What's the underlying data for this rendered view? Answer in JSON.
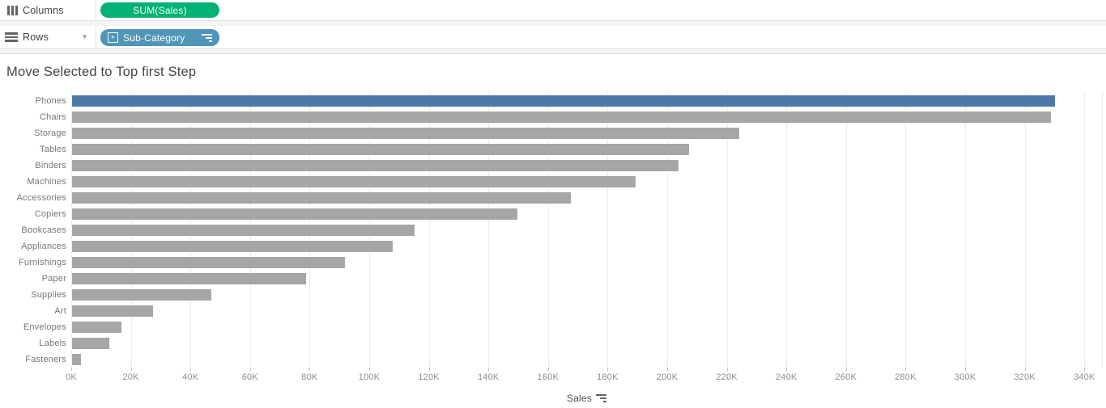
{
  "shelves": {
    "columns": {
      "label": "Columns",
      "pill": {
        "label": "SUM(Sales)",
        "color": "#00b273"
      }
    },
    "rows": {
      "label": "Rows",
      "caret_glyph": "▾",
      "pill": {
        "label": "Sub-Category",
        "color": "#4f96b8",
        "expand_glyph": "+",
        "sorted": "descending"
      }
    }
  },
  "title": "Move Selected to Top first Step",
  "chart_data": {
    "type": "bar",
    "orientation": "horizontal",
    "title": "Move Selected to Top first Step",
    "xlabel": "Sales",
    "ylabel": "Sub-Category",
    "sort": "descending",
    "grid": true,
    "categories": [
      "Phones",
      "Chairs",
      "Storage",
      "Tables",
      "Binders",
      "Machines",
      "Accessories",
      "Copiers",
      "Bookcases",
      "Appliances",
      "Furnishings",
      "Paper",
      "Supplies",
      "Art",
      "Envelopes",
      "Labels",
      "Fasteners"
    ],
    "values_k": [
      330.0,
      328.4,
      223.8,
      207.0,
      203.4,
      189.2,
      167.4,
      149.5,
      114.9,
      107.5,
      91.7,
      78.5,
      46.7,
      27.1,
      16.5,
      12.5,
      3.0
    ],
    "units": "K (thousands of sales)",
    "highlight_index": 0,
    "bar_color_highlight": "#4e79a7",
    "bar_color_default": "#a6a6a6",
    "xlim_k": [
      0,
      340
    ],
    "x_tick_values": [
      0,
      20,
      40,
      60,
      80,
      100,
      120,
      140,
      160,
      180,
      200,
      220,
      240,
      260,
      280,
      300,
      320,
      340
    ],
    "x_tick_labels": [
      "0K",
      "20K",
      "40K",
      "60K",
      "80K",
      "100K",
      "120K",
      "140K",
      "160K",
      "180K",
      "200K",
      "220K",
      "240K",
      "260K",
      "280K",
      "300K",
      "320K",
      "340K"
    ]
  }
}
